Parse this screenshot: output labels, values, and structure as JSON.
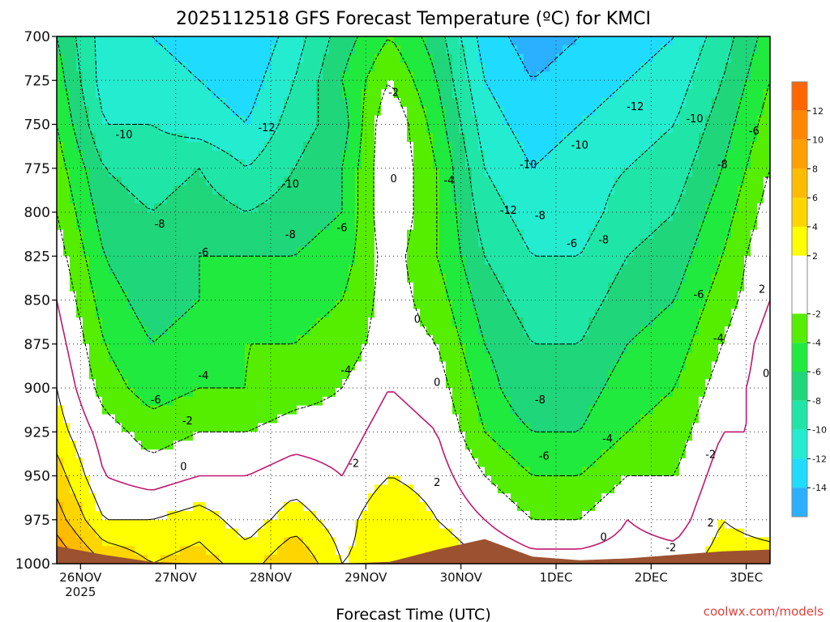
{
  "chart_data": {
    "type": "heatmap",
    "title": "2025112518 GFS Forecast Temperature (ºC) for KMCI",
    "xlabel": "Forecast Time (UTC)",
    "ylabel": "",
    "credit": "coolwx.com/models",
    "x_start_hour": 18,
    "x_ticks": [
      {
        "label": "26NOV",
        "sub": "2025",
        "hour": 24
      },
      {
        "label": "27NOV",
        "sub": "",
        "hour": 48
      },
      {
        "label": "28NOV",
        "sub": "",
        "hour": 72
      },
      {
        "label": "29NOV",
        "sub": "",
        "hour": 96
      },
      {
        "label": "30NOV",
        "sub": "",
        "hour": 120
      },
      {
        "label": "1DEC",
        "sub": "",
        "hour": 144
      },
      {
        "label": "2DEC",
        "sub": "",
        "hour": 168
      },
      {
        "label": "3DEC",
        "sub": "",
        "hour": 192
      }
    ],
    "xlim": [
      18,
      198
    ],
    "ylim": [
      1000,
      700
    ],
    "y_ticks": [
      "700",
      "725",
      "750",
      "775",
      "800",
      "825",
      "850",
      "875",
      "900",
      "925",
      "950",
      "975",
      "1000"
    ],
    "levels": [
      1000,
      975,
      950,
      925,
      900,
      875,
      850,
      825,
      800,
      775,
      750,
      725,
      700
    ],
    "times": [
      18,
      30,
      42,
      54,
      66,
      78,
      90,
      102,
      114,
      126,
      138,
      150,
      162,
      174,
      186,
      198
    ],
    "temperature": [
      [
        10,
        6,
        4,
        5,
        3,
        6,
        2,
        3,
        4,
        2,
        1,
        1,
        1,
        1,
        3,
        3
      ],
      [
        7,
        2,
        2,
        3,
        1,
        3,
        1,
        4,
        2,
        0,
        -2,
        -2,
        0,
        -1,
        2,
        1
      ],
      [
        5,
        0,
        -1,
        0,
        0,
        1,
        0,
        2,
        1,
        -2,
        -4,
        -4,
        -2,
        -2,
        1,
        0
      ],
      [
        3,
        -1,
        -3,
        -2,
        -2,
        -1,
        -1,
        1,
        0,
        -4,
        -6,
        -6,
        -4,
        -3,
        0,
        0
      ],
      [
        2,
        -3,
        -5,
        -4,
        -4,
        -3,
        -2,
        0,
        -1,
        -5,
        -8,
        -7,
        -5,
        -4,
        -1,
        1
      ],
      [
        1,
        -4,
        -6,
        -5,
        -4,
        -4,
        -3,
        -1,
        -2,
        -6,
        -8,
        -8,
        -6,
        -5,
        -2,
        1
      ],
      [
        0,
        -5,
        -7,
        -6,
        -5,
        -5,
        -4,
        -1,
        -3,
        -7,
        -9,
        -9,
        -7,
        -6,
        -3,
        0
      ],
      [
        -1,
        -6,
        -8,
        -6,
        -6,
        -6,
        -5,
        -1,
        -4,
        -8,
        -10,
        -10,
        -8,
        -7,
        -4,
        0
      ],
      [
        -2,
        -7,
        -8,
        -7,
        -8,
        -7,
        -6,
        0,
        -4,
        -9,
        -11,
        -11,
        -9,
        -8,
        -5,
        -1
      ],
      [
        -3,
        -8,
        -9,
        -8,
        -10,
        -8,
        -6,
        0,
        -4,
        -10,
        -12,
        -11,
        -10,
        -9,
        -6,
        -2
      ],
      [
        -4,
        -10,
        -10,
        -11,
        -12,
        -9,
        -7,
        0,
        -5,
        -11,
        -13,
        -12,
        -11,
        -10,
        -7,
        -3
      ],
      [
        -5,
        -11,
        -11,
        -12,
        -13,
        -10,
        -6,
        -2,
        -6,
        -12,
        -14,
        -13,
        -12,
        -11,
        -8,
        -4
      ],
      [
        -6,
        -11,
        -12,
        -13,
        -14,
        -11,
        -7,
        -4,
        -7,
        -13,
        -15,
        -14,
        -13,
        -12,
        -9,
        -5
      ]
    ],
    "terrain_pressure": [
      990,
      995,
      999,
      1000,
      1000,
      1000,
      1000,
      999,
      992,
      986,
      996,
      998,
      997,
      995,
      993,
      992
    ],
    "contour_labels": [
      {
        "text": "-10",
        "t": 35,
        "p": 756
      },
      {
        "text": "-12",
        "t": 71,
        "p": 752
      },
      {
        "text": "-10",
        "t": 77,
        "p": 784
      },
      {
        "text": "-8",
        "t": 44,
        "p": 807
      },
      {
        "text": "-8",
        "t": 77,
        "p": 813
      },
      {
        "text": "-6",
        "t": 55,
        "p": 823
      },
      {
        "text": "-6",
        "t": 90,
        "p": 809
      },
      {
        "text": "-4",
        "t": 55,
        "p": 893
      },
      {
        "text": "-4",
        "t": 91,
        "p": 890
      },
      {
        "text": "-6",
        "t": 43,
        "p": 907
      },
      {
        "text": "-2",
        "t": 51,
        "p": 919
      },
      {
        "text": "0",
        "t": 50,
        "p": 945
      },
      {
        "text": "-2",
        "t": 93,
        "p": 943
      },
      {
        "text": "-2",
        "t": 103,
        "p": 732
      },
      {
        "text": "0",
        "t": 103,
        "p": 781
      },
      {
        "text": "0",
        "t": 109,
        "p": 861
      },
      {
        "text": "0",
        "t": 114,
        "p": 897
      },
      {
        "text": "2",
        "t": 114,
        "p": 954
      },
      {
        "text": "-4",
        "t": 117,
        "p": 782
      },
      {
        "text": "-12",
        "t": 132,
        "p": 799
      },
      {
        "text": "-10",
        "t": 137,
        "p": 773
      },
      {
        "text": "-8",
        "t": 140,
        "p": 802
      },
      {
        "text": "-6",
        "t": 148,
        "p": 818
      },
      {
        "text": "-8",
        "t": 156,
        "p": 816
      },
      {
        "text": "-10",
        "t": 150,
        "p": 762
      },
      {
        "text": "-12",
        "t": 164,
        "p": 740
      },
      {
        "text": "-10",
        "t": 179,
        "p": 747
      },
      {
        "text": "-8",
        "t": 186,
        "p": 773
      },
      {
        "text": "-6",
        "t": 194,
        "p": 754
      },
      {
        "text": "-4",
        "t": 198,
        "p": 780
      },
      {
        "text": "-6",
        "t": 180,
        "p": 847
      },
      {
        "text": "-4",
        "t": 185,
        "p": 872
      },
      {
        "text": "-8",
        "t": 140,
        "p": 907
      },
      {
        "text": "-6",
        "t": 141,
        "p": 939
      },
      {
        "text": "-4",
        "t": 157,
        "p": 929
      },
      {
        "text": "-2",
        "t": 183,
        "p": 938
      },
      {
        "text": "0",
        "t": 197,
        "p": 892
      },
      {
        "text": "2",
        "t": 196,
        "p": 844
      },
      {
        "text": "0",
        "t": 156,
        "p": 985
      },
      {
        "text": "-2",
        "t": 173,
        "p": 991
      },
      {
        "text": "2",
        "t": 183,
        "p": 977
      }
    ],
    "colorbar": {
      "ticks": [
        "12",
        "10",
        "8",
        "6",
        "4",
        "2",
        "-2",
        "-4",
        "-6",
        "-8",
        "-10",
        "-12",
        "-14"
      ],
      "bins": [
        {
          "min": 12,
          "max": 14,
          "color": "#ff6600"
        },
        {
          "min": 10,
          "max": 12,
          "color": "#ff8800"
        },
        {
          "min": 8,
          "max": 10,
          "color": "#ffa000"
        },
        {
          "min": 6,
          "max": 8,
          "color": "#ffbb00"
        },
        {
          "min": 4,
          "max": 6,
          "color": "#ffd500"
        },
        {
          "min": 2,
          "max": 4,
          "color": "#ffff00"
        },
        {
          "min": -2,
          "max": 2,
          "color": "#ffffff"
        },
        {
          "min": -4,
          "max": -2,
          "color": "#55ee00"
        },
        {
          "min": -6,
          "max": -4,
          "color": "#1fea3d"
        },
        {
          "min": -8,
          "max": -6,
          "color": "#1fd67a"
        },
        {
          "min": -10,
          "max": -8,
          "color": "#1fe6a6"
        },
        {
          "min": -12,
          "max": -10,
          "color": "#24ecd0"
        },
        {
          "min": -14,
          "max": -12,
          "color": "#1fdcff"
        },
        {
          "min": -16,
          "max": -14,
          "color": "#2ab0ff"
        }
      ]
    },
    "terrain_color": "#9c5230",
    "contour_colors": {
      "negative": "#000000",
      "zero": "#c01870",
      "positive": "#000000"
    },
    "grid": true
  }
}
